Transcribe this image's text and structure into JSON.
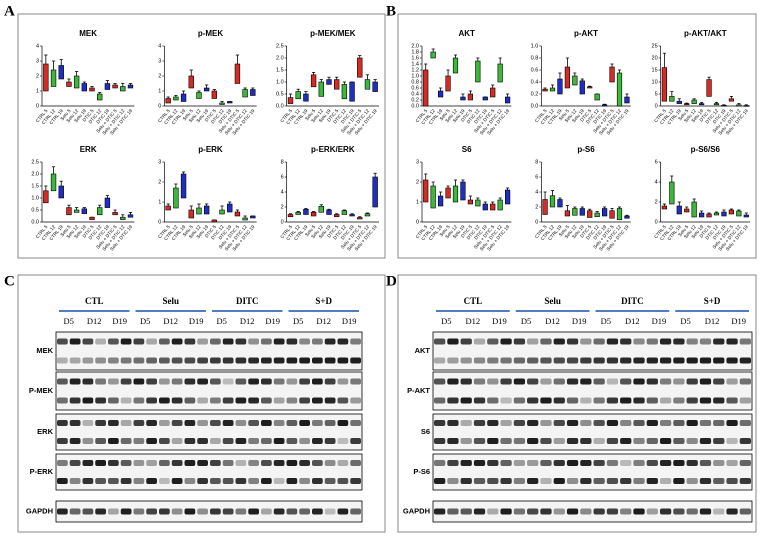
{
  "figure": {
    "panel_labels": [
      "A",
      "B",
      "C",
      "D"
    ]
  },
  "chart_data": [
    {
      "type": "box",
      "title": "MEK",
      "categories": [
        "CTRL 5",
        "CTRL 12",
        "CTRL 19",
        "Selu 5",
        "Selu 12",
        "Selu 19",
        "DTIC 5",
        "DTIC 12",
        "DTIC 19",
        "Selu + DTIC 5",
        "Selu + DTIC 12",
        "Selu + DTIC 19"
      ],
      "colors": [
        "#d62b24",
        "#3cb83a",
        "#1f2fc4"
      ],
      "ylim": [
        0,
        4
      ],
      "yticks": [
        0,
        1,
        2,
        3,
        4
      ],
      "boxes": [
        [
          1.0,
          2.8,
          3.4
        ],
        [
          1.3,
          2.4,
          3.0
        ],
        [
          1.8,
          2.7,
          3.1
        ],
        [
          1.3,
          1.6,
          1.8
        ],
        [
          1.2,
          2.0,
          2.3
        ],
        [
          1.0,
          1.5,
          1.6
        ],
        [
          1.0,
          1.2,
          1.3
        ],
        [
          0.4,
          0.8,
          0.9
        ],
        [
          1.1,
          1.5,
          1.7
        ],
        [
          1.2,
          1.4,
          1.5
        ],
        [
          1.0,
          1.3,
          1.5
        ],
        [
          1.2,
          1.4,
          1.5
        ]
      ]
    },
    {
      "type": "box",
      "title": "p-MEK",
      "categories": [
        "CTRL 5",
        "CTRL 12",
        "CTRL 19",
        "Selu 5",
        "Selu 12",
        "Selu 19",
        "DTIC 5",
        "DTIC 12",
        "DTIC 19",
        "Selu + DTIC 5",
        "Selu + DTIC 12",
        "Selu + DTIC 19"
      ],
      "colors": [
        "#d62b24",
        "#3cb83a",
        "#1f2fc4"
      ],
      "ylim": [
        0,
        4
      ],
      "yticks": [
        0,
        1,
        2,
        3,
        4
      ],
      "boxes": [
        [
          0.2,
          0.5,
          0.6
        ],
        [
          0.4,
          0.6,
          0.7
        ],
        [
          0.3,
          0.8,
          1.0
        ],
        [
          1.2,
          2.0,
          2.4
        ],
        [
          0.5,
          0.9,
          1.0
        ],
        [
          1.0,
          1.2,
          1.4
        ],
        [
          0.5,
          1.0,
          1.1
        ],
        [
          0.1,
          0.2,
          0.3
        ],
        [
          0.2,
          0.3,
          0.3
        ],
        [
          1.5,
          2.8,
          3.4
        ],
        [
          0.6,
          1.1,
          1.2
        ],
        [
          0.7,
          1.1,
          1.2
        ]
      ]
    },
    {
      "type": "box",
      "title": "p-MEK/MEK",
      "categories": [
        "CTRL 5",
        "CTRL 12",
        "CTRL 19",
        "Selu 5",
        "Selu 12",
        "Selu 19",
        "DTIC 5",
        "DTIC 12",
        "DTIC 19",
        "Selu + DTIC 5",
        "Selu + DTIC 12",
        "Selu + DTIC 19"
      ],
      "colors": [
        "#d62b24",
        "#3cb83a",
        "#1f2fc4"
      ],
      "ylim": [
        0,
        2.5
      ],
      "yticks": [
        {
          "value": 0,
          "label": "0.0"
        },
        {
          "value": 0.5,
          "label": "0.5"
        },
        {
          "value": 1,
          "label": "1.0"
        },
        {
          "value": 1.5,
          "label": "1.5"
        },
        {
          "value": 2,
          "label": "2.0"
        },
        {
          "value": 2.5,
          "label": "2.5"
        }
      ],
      "boxes": [
        [
          0.1,
          0.35,
          0.5
        ],
        [
          0.3,
          0.6,
          0.7
        ],
        [
          0.2,
          0.5,
          0.6
        ],
        [
          0.8,
          1.3,
          1.4
        ],
        [
          0.4,
          1.0,
          1.1
        ],
        [
          0.9,
          1.1,
          1.2
        ],
        [
          0.7,
          1.1,
          1.2
        ],
        [
          0.3,
          0.9,
          1.0
        ],
        [
          0.2,
          1.0,
          1.0
        ],
        [
          1.2,
          2.0,
          2.1
        ],
        [
          0.7,
          1.1,
          1.3
        ],
        [
          0.6,
          1.0,
          1.1
        ]
      ]
    },
    {
      "type": "box",
      "title": "ERK",
      "categories": [
        "CTRL 5",
        "CTRL 12",
        "CTRL 19",
        "Selu 5",
        "Selu 12",
        "Selu 19",
        "DTIC 5",
        "DTIC 12",
        "DTIC 19",
        "Selu + DTIC 5",
        "Selu + DTIC 12",
        "Selu + DTIC 19"
      ],
      "colors": [
        "#d62b24",
        "#3cb83a",
        "#1f2fc4"
      ],
      "ylim": [
        0,
        2.5
      ],
      "yticks": [
        {
          "value": 0,
          "label": "0.0"
        },
        {
          "value": 0.5,
          "label": "0.5"
        },
        {
          "value": 1,
          "label": "1.0"
        },
        {
          "value": 1.5,
          "label": "1.5"
        },
        {
          "value": 2,
          "label": "2.0"
        },
        {
          "value": 2.5,
          "label": "2.5"
        }
      ],
      "boxes": [
        [
          0.8,
          1.3,
          1.5
        ],
        [
          1.3,
          2.0,
          2.3
        ],
        [
          1.0,
          1.5,
          1.7
        ],
        [
          0.3,
          0.6,
          0.7
        ],
        [
          0.4,
          0.5,
          0.6
        ],
        [
          0.35,
          0.55,
          0.6
        ],
        [
          0.1,
          0.2,
          0.2
        ],
        [
          0.3,
          0.6,
          0.7
        ],
        [
          0.6,
          1.0,
          1.1
        ],
        [
          0.3,
          0.4,
          0.5
        ],
        [
          0.1,
          0.2,
          0.3
        ],
        [
          0.2,
          0.3,
          0.4
        ]
      ]
    },
    {
      "type": "box",
      "title": "p-ERK",
      "categories": [
        "CTRL 5",
        "CTRL 12",
        "CTRL 19",
        "Selu 5",
        "Selu 12",
        "Selu 19",
        "DTIC 5",
        "DTIC 12",
        "DTIC 19",
        "Selu + DTIC 5",
        "Selu + DTIC 12",
        "Selu + DTIC 19"
      ],
      "colors": [
        "#d62b24",
        "#3cb83a",
        "#1f2fc4"
      ],
      "ylim": [
        0,
        3
      ],
      "yticks": [
        0,
        1,
        2,
        3
      ],
      "boxes": [
        [
          0.6,
          0.8,
          0.9
        ],
        [
          0.7,
          1.7,
          1.9
        ],
        [
          1.2,
          2.4,
          2.5
        ],
        [
          0.2,
          0.6,
          0.8
        ],
        [
          0.4,
          0.7,
          0.9
        ],
        [
          0.4,
          0.8,
          0.9
        ],
        [
          0.0,
          0.1,
          0.1
        ],
        [
          0.4,
          0.6,
          0.8
        ],
        [
          0.5,
          0.9,
          1.0
        ],
        [
          0.3,
          0.5,
          0.6
        ],
        [
          0.1,
          0.2,
          0.3
        ],
        [
          0.2,
          0.3,
          0.3
        ]
      ]
    },
    {
      "type": "box",
      "title": "p-ERK/ERK",
      "categories": [
        "CTRL 5",
        "CTRL 12",
        "CTRL 19",
        "Selu 5",
        "Selu 12",
        "Selu 19",
        "DTIC 5",
        "DTIC 12",
        "DTIC 19",
        "Selu + DTIC 5",
        "Selu + DTIC 12",
        "Selu + DTIC 19"
      ],
      "colors": [
        "#d62b24",
        "#3cb83a",
        "#1f2fc4"
      ],
      "ylim": [
        0,
        8
      ],
      "yticks": [
        0,
        2,
        4,
        6,
        8
      ],
      "boxes": [
        [
          0.7,
          1.0,
          1.1
        ],
        [
          1.0,
          1.3,
          1.4
        ],
        [
          1.0,
          1.7,
          1.8
        ],
        [
          0.8,
          1.3,
          1.4
        ],
        [
          1.3,
          2.1,
          2.3
        ],
        [
          1.0,
          1.6,
          1.7
        ],
        [
          0.7,
          1.0,
          1.1
        ],
        [
          1.0,
          1.5,
          1.6
        ],
        [
          0.8,
          1.0,
          1.1
        ],
        [
          0.4,
          0.6,
          0.7
        ],
        [
          0.8,
          1.1,
          1.2
        ],
        [
          2.0,
          6.0,
          6.5
        ]
      ]
    },
    {
      "type": "box",
      "title": "AKT",
      "categories": [
        "CTRL 5",
        "CTRL 12",
        "CTRL 19",
        "Selu 5",
        "Selu 12",
        "Selu 19",
        "DTIC 5",
        "DTIC 12",
        "DTIC 19",
        "Selu + DTIC 5",
        "Selu + DTIC 12",
        "Selu + DTIC 19"
      ],
      "colors": [
        "#d62b24",
        "#3cb83a",
        "#1f2fc4"
      ],
      "ylim": [
        0,
        2
      ],
      "yticks": [
        {
          "value": 0,
          "label": "0.0"
        },
        {
          "value": 0.2,
          "label": "0.2"
        },
        {
          "value": 0.4,
          "label": "0.4"
        },
        {
          "value": 0.6,
          "label": "0.6"
        },
        {
          "value": 0.8,
          "label": "0.8"
        },
        {
          "value": 1,
          "label": "1.0"
        },
        {
          "value": 1.2,
          "label": "1.2"
        },
        {
          "value": 1.4,
          "label": "1.4"
        },
        {
          "value": 1.6,
          "label": "1.6"
        },
        {
          "value": 1.8,
          "label": "1.8"
        },
        {
          "value": 2,
          "label": "2.0"
        }
      ],
      "boxes": [
        [
          0.0,
          1.2,
          1.4
        ],
        [
          1.6,
          1.8,
          1.9
        ],
        [
          0.3,
          0.5,
          0.6
        ],
        [
          0.5,
          1.0,
          1.2
        ],
        [
          1.1,
          1.6,
          1.7
        ],
        [
          0.2,
          0.3,
          0.4
        ],
        [
          0.2,
          0.4,
          0.5
        ],
        [
          0.8,
          1.5,
          1.6
        ],
        [
          0.2,
          0.3,
          0.3
        ],
        [
          0.3,
          0.6,
          0.7
        ],
        [
          0.8,
          1.4,
          1.6
        ],
        [
          0.1,
          0.3,
          0.4
        ]
      ]
    },
    {
      "type": "box",
      "title": "p-AKT",
      "categories": [
        "CTRL 5",
        "CTRL 12",
        "CTRL 19",
        "Selu 5",
        "Selu 12",
        "Selu 19",
        "DTIC 5",
        "DTIC 12",
        "DTIC 19",
        "Selu + DTIC 5",
        "Selu + DTIC 12",
        "Selu + DTIC 19"
      ],
      "colors": [
        "#d62b24",
        "#3cb83a",
        "#1f2fc4"
      ],
      "ylim": [
        0,
        1
      ],
      "yticks": [
        {
          "value": 0,
          "label": "0.0"
        },
        {
          "value": 0.2,
          "label": "0.2"
        },
        {
          "value": 0.4,
          "label": "0.4"
        },
        {
          "value": 0.6,
          "label": "0.6"
        },
        {
          "value": 0.8,
          "label": "0.8"
        },
        {
          "value": 1,
          "label": "1.0"
        }
      ],
      "boxes": [
        [
          0.25,
          0.28,
          0.3
        ],
        [
          0.25,
          0.3,
          0.35
        ],
        [
          0.2,
          0.45,
          0.55
        ],
        [
          0.3,
          0.65,
          0.8
        ],
        [
          0.35,
          0.5,
          0.55
        ],
        [
          0.2,
          0.42,
          0.45
        ],
        [
          0.3,
          0.32,
          0.33
        ],
        [
          0.1,
          0.2,
          0.2
        ],
        [
          0.0,
          0.02,
          0.03
        ],
        [
          0.4,
          0.65,
          0.7
        ],
        [
          0.0,
          0.55,
          0.6
        ],
        [
          0.05,
          0.15,
          0.2
        ]
      ]
    },
    {
      "type": "box",
      "title": "p-AKT/AKT",
      "categories": [
        "CTRL 5",
        "CTRL 12",
        "CTRL 19",
        "Selu 5",
        "Selu 12",
        "Selu 19",
        "DTIC 5",
        "DTIC 12",
        "DTIC 19",
        "Selu + DTIC 5",
        "Selu + DTIC 12",
        "Selu + DTIC 19"
      ],
      "colors": [
        "#d62b24",
        "#3cb83a",
        "#1f2fc4"
      ],
      "ylim": [
        0,
        25
      ],
      "yticks": [
        0,
        5,
        10,
        15,
        20,
        25
      ],
      "boxes": [
        [
          2,
          16,
          22
        ],
        [
          2,
          4,
          6
        ],
        [
          1,
          2,
          3
        ],
        [
          0.5,
          1,
          1.2
        ],
        [
          1,
          2.5,
          3
        ],
        [
          0.5,
          1,
          1.5
        ],
        [
          4,
          11,
          12
        ],
        [
          0.5,
          1,
          1.5
        ],
        [
          0,
          0.3,
          0.5
        ],
        [
          2,
          3,
          4
        ],
        [
          0,
          0.5,
          1
        ],
        [
          0,
          0.2,
          0.5
        ]
      ]
    },
    {
      "type": "box",
      "title": "S6",
      "categories": [
        "CTRL 5",
        "CTRL 12",
        "CTRL 19",
        "Selu 5",
        "Selu 12",
        "Selu 19",
        "DTIC 5",
        "DTIC 12",
        "DTIC 19",
        "Selu + DTIC 5",
        "Selu + DTIC 12",
        "Selu + DTIC 19"
      ],
      "colors": [
        "#d62b24",
        "#3cb83a",
        "#1f2fc4"
      ],
      "ylim": [
        0,
        3
      ],
      "yticks": [
        0,
        1,
        2,
        3
      ],
      "boxes": [
        [
          1.0,
          2.1,
          2.4
        ],
        [
          0.7,
          1.8,
          2.0
        ],
        [
          0.8,
          1.3,
          1.5
        ],
        [
          1.2,
          1.7,
          1.8
        ],
        [
          1.0,
          1.8,
          2.1
        ],
        [
          1.1,
          2.0,
          2.1
        ],
        [
          0.9,
          1.1,
          1.3
        ],
        [
          0.8,
          1.1,
          1.2
        ],
        [
          0.6,
          0.9,
          1.0
        ],
        [
          0.6,
          0.9,
          1.0
        ],
        [
          0.6,
          1.1,
          1.2
        ],
        [
          0.9,
          1.6,
          1.7
        ]
      ]
    },
    {
      "type": "box",
      "title": "p-S6",
      "categories": [
        "CTRL 5",
        "CTRL 12",
        "CTRL 19",
        "Selu 5",
        "Selu 12",
        "Selu 19",
        "DTIC 5",
        "DTIC 12",
        "DTIC 19",
        "Selu + DTIC 5",
        "Selu + DTIC 12",
        "Selu + DTIC 19"
      ],
      "colors": [
        "#d62b24",
        "#3cb83a",
        "#1f2fc4"
      ],
      "ylim": [
        0,
        8
      ],
      "yticks": [
        0,
        2,
        4,
        6,
        8
      ],
      "boxes": [
        [
          1,
          3,
          4
        ],
        [
          2,
          3.5,
          4.2
        ],
        [
          2,
          3,
          3.2
        ],
        [
          0.8,
          1.5,
          2.2
        ],
        [
          0.9,
          1.8,
          2.0
        ],
        [
          0.9,
          1.8,
          2.0
        ],
        [
          0.6,
          1.5,
          1.7
        ],
        [
          0.7,
          1.2,
          1.4
        ],
        [
          0.8,
          1.8,
          2.0
        ],
        [
          0.5,
          1.5,
          1.8
        ],
        [
          0.3,
          1.8,
          2.0
        ],
        [
          0.5,
          0.8,
          0.9
        ]
      ]
    },
    {
      "type": "box",
      "title": "p-S6/S6",
      "categories": [
        "CTRL 5",
        "CTRL 12",
        "CTRL 19",
        "Selu 5",
        "Selu 12",
        "Selu 19",
        "DTIC 5",
        "DTIC 12",
        "DTIC 19",
        "Selu + DTIC 5",
        "Selu + DTIC 12",
        "Selu + DTIC 19"
      ],
      "colors": [
        "#d62b24",
        "#3cb83a",
        "#1f2fc4"
      ],
      "ylim": [
        0,
        6
      ],
      "yticks": [
        0,
        2,
        4,
        6
      ],
      "boxes": [
        [
          1.3,
          1.6,
          1.8
        ],
        [
          1.8,
          4.0,
          4.6
        ],
        [
          0.8,
          1.6,
          2.0
        ],
        [
          1.0,
          1.3,
          1.5
        ],
        [
          0.5,
          2.0,
          2.3
        ],
        [
          0.5,
          0.9,
          1.1
        ],
        [
          0.5,
          0.8,
          0.9
        ],
        [
          0.7,
          0.9,
          1.0
        ],
        [
          0.6,
          1.0,
          1.2
        ],
        [
          0.8,
          1.2,
          1.3
        ],
        [
          0.6,
          1.1,
          1.2
        ],
        [
          0.5,
          0.7,
          0.9
        ]
      ]
    }
  ],
  "blots": [
    {
      "groups": [
        "CTL",
        "Selu",
        "DITC",
        "S+D"
      ],
      "days": [
        "D5",
        "D12",
        "D19"
      ],
      "rows": [
        "MEK",
        "P-MEK",
        "ERK",
        "P-ERK",
        "GAPDH"
      ]
    },
    {
      "groups": [
        "CTL",
        "Selu",
        "DITC",
        "S+D"
      ],
      "days": [
        "D5",
        "D12",
        "D19"
      ],
      "rows": [
        "AKT",
        "P-AKT",
        "S6",
        "P-S6",
        "GAPDH"
      ]
    }
  ]
}
